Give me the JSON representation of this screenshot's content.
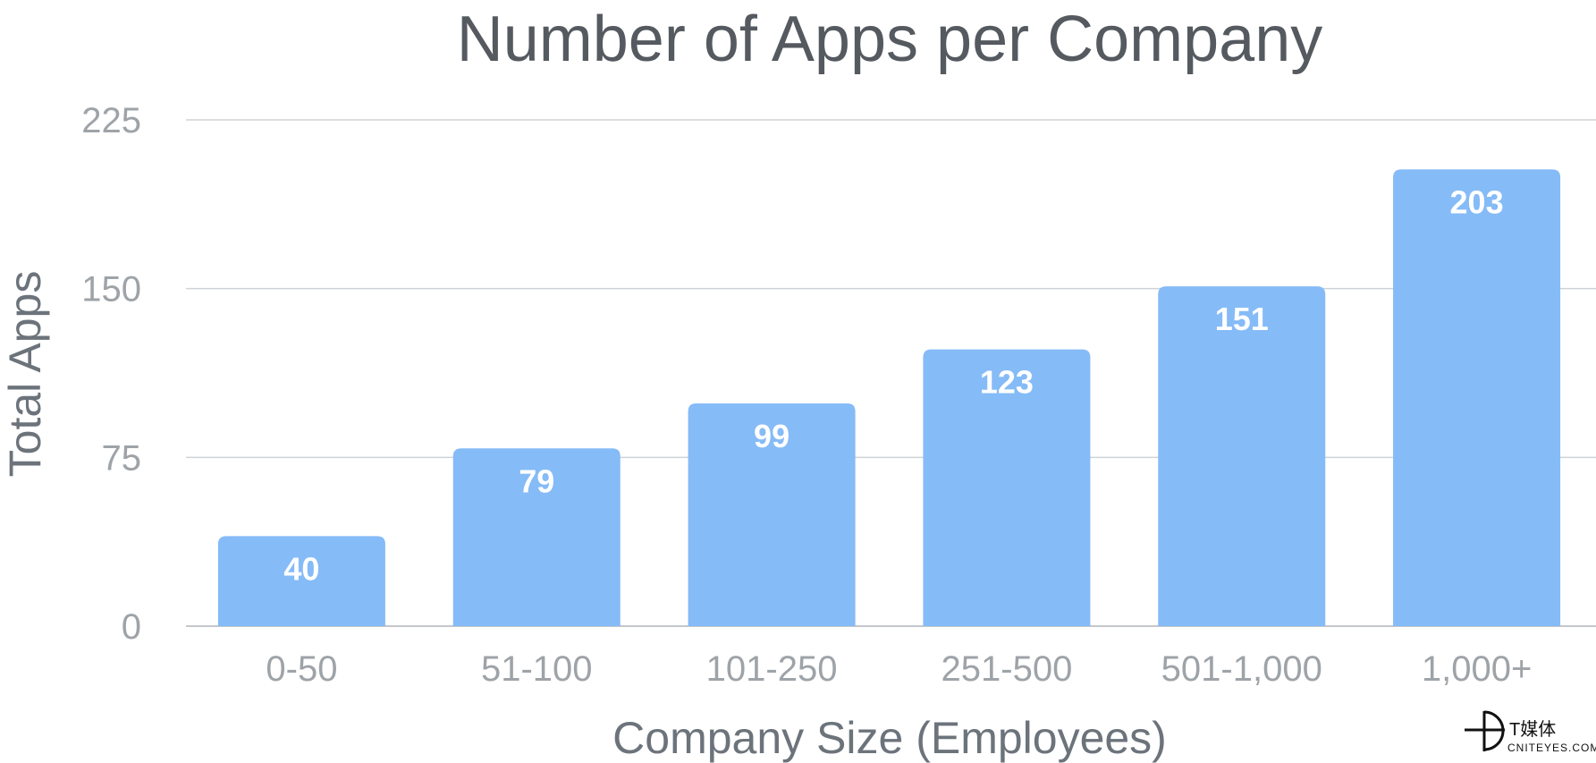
{
  "chart_data": {
    "type": "bar",
    "title": "Number of Apps per Company",
    "xlabel": "Company Size (Employees)",
    "ylabel": "Total Apps",
    "categories": [
      "0-50",
      "51-100",
      "101-250",
      "251-500",
      "501-1,000",
      "1,000+"
    ],
    "values": [
      40,
      79,
      99,
      123,
      151,
      203
    ],
    "value_labels": [
      "40",
      "79",
      "99",
      "123",
      "151",
      "203"
    ],
    "yticks": [
      0,
      75,
      150,
      225
    ],
    "ytick_labels": [
      "0",
      "75",
      "150",
      "225"
    ],
    "ylim": [
      0,
      225
    ],
    "grid": true,
    "bar_color": "#85bbf7"
  },
  "watermark": {
    "brand": "T媒体",
    "site": "CNITEYES.COM"
  }
}
